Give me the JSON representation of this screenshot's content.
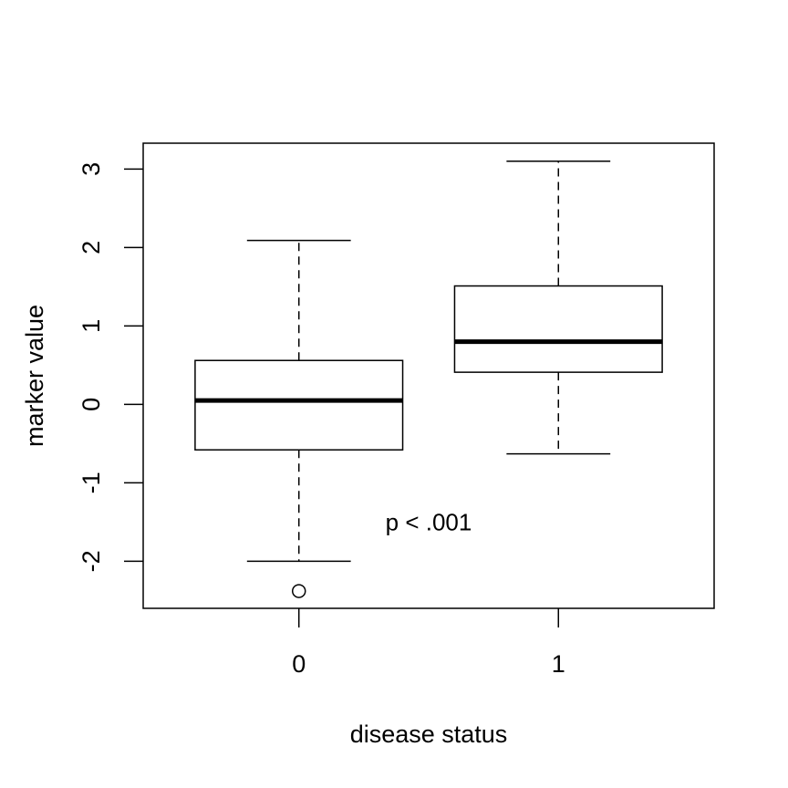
{
  "chart_data": {
    "type": "boxplot",
    "title": "",
    "xlabel": "disease status",
    "ylabel": "marker value",
    "categories": [
      "0",
      "1"
    ],
    "boxes": [
      {
        "category": "0",
        "whisker_low": -2.0,
        "q1": -0.58,
        "median": 0.05,
        "q3": 0.56,
        "whisker_high": 2.09,
        "outliers": [
          -2.38
        ]
      },
      {
        "category": "1",
        "whisker_low": -0.63,
        "q1": 0.41,
        "median": 0.8,
        "q3": 1.51,
        "whisker_high": 3.1,
        "outliers": []
      }
    ],
    "ylim": [
      -2.6,
      3.33
    ],
    "yticks": [
      -2,
      -1,
      0,
      1,
      2,
      3
    ],
    "ytick_labels": [
      "-2",
      "-1",
      "0",
      "1",
      "2",
      "3"
    ],
    "annotation": {
      "text": "p < .001",
      "x": 1.5,
      "y": -1.5
    },
    "grid": false,
    "legend": "none",
    "colors": {
      "stroke": "#000000",
      "background": "#ffffff"
    }
  }
}
